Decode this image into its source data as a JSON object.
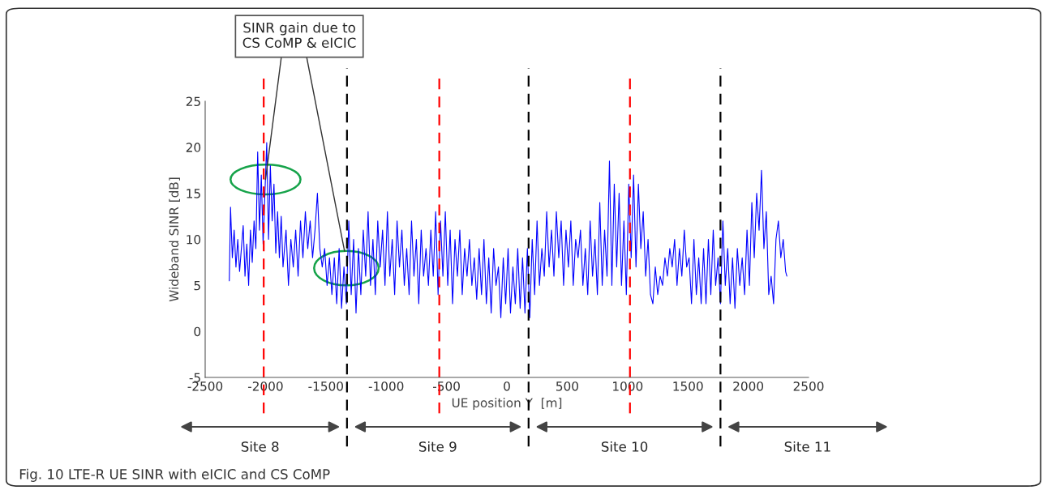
{
  "chart_data": {
    "type": "line",
    "xlabel": "UE position Y  [m]",
    "ylabel": "Wideband SINR [dB]",
    "xlim": [
      -2500,
      2500
    ],
    "xticks": [
      -2500,
      -2000,
      -1500,
      -1000,
      -500,
      0,
      500,
      1000,
      1500,
      2000,
      2500
    ],
    "ylim": [
      -5,
      25
    ],
    "yticks": [
      -5,
      0,
      5,
      10,
      15,
      20,
      25
    ],
    "grid": false,
    "legend": false,
    "series": [
      {
        "color": "#0000ff",
        "x": [
          -2300,
          -2290,
          -2275,
          -2260,
          -2245,
          -2230,
          -2215,
          -2200,
          -2185,
          -2170,
          -2155,
          -2140,
          -2125,
          -2110,
          -2095,
          -2080,
          -2065,
          -2050,
          -2035,
          -2020,
          -2005,
          -1990,
          -1975,
          -1960,
          -1945,
          -1930,
          -1915,
          -1900,
          -1885,
          -1870,
          -1855,
          -1830,
          -1810,
          -1790,
          -1770,
          -1750,
          -1730,
          -1710,
          -1690,
          -1670,
          -1650,
          -1630,
          -1610,
          -1590,
          -1570,
          -1550,
          -1530,
          -1510,
          -1490,
          -1470,
          -1450,
          -1430,
          -1410,
          -1390,
          -1370,
          -1350,
          -1330,
          -1310,
          -1290,
          -1270,
          -1250,
          -1230,
          -1210,
          -1190,
          -1170,
          -1150,
          -1130,
          -1110,
          -1090,
          -1070,
          -1050,
          -1030,
          -1010,
          -990,
          -970,
          -950,
          -930,
          -910,
          -890,
          -870,
          -850,
          -830,
          -810,
          -790,
          -770,
          -750,
          -730,
          -710,
          -690,
          -670,
          -650,
          -630,
          -610,
          -590,
          -570,
          -550,
          -530,
          -510,
          -490,
          -470,
          -450,
          -430,
          -410,
          -390,
          -370,
          -350,
          -330,
          -310,
          -290,
          -270,
          -250,
          -230,
          -210,
          -190,
          -170,
          -150,
          -130,
          -110,
          -90,
          -70,
          -50,
          -30,
          -10,
          10,
          30,
          50,
          70,
          90,
          110,
          130,
          150,
          170,
          190,
          210,
          230,
          250,
          270,
          290,
          310,
          330,
          350,
          370,
          390,
          410,
          430,
          450,
          470,
          490,
          510,
          530,
          550,
          570,
          590,
          610,
          630,
          650,
          670,
          690,
          710,
          730,
          750,
          770,
          790,
          810,
          830,
          850,
          870,
          890,
          910,
          930,
          950,
          970,
          990,
          1010,
          1030,
          1050,
          1070,
          1090,
          1110,
          1130,
          1150,
          1170,
          1190,
          1210,
          1230,
          1250,
          1270,
          1290,
          1310,
          1330,
          1350,
          1370,
          1390,
          1410,
          1430,
          1450,
          1470,
          1490,
          1510,
          1530,
          1550,
          1570,
          1590,
          1610,
          1630,
          1650,
          1670,
          1690,
          1710,
          1730,
          1750,
          1770,
          1790,
          1810,
          1830,
          1850,
          1870,
          1890,
          1910,
          1930,
          1950,
          1970,
          1990,
          2010,
          2030,
          2050,
          2070,
          2090,
          2110,
          2130,
          2150,
          2170,
          2190,
          2210,
          2230,
          2250,
          2270,
          2290,
          2310,
          2320
        ],
        "values": [
          5.5,
          13.5,
          8,
          11,
          7,
          10,
          6.5,
          9,
          11.5,
          6,
          9.5,
          5,
          11,
          7.5,
          12,
          9,
          19.5,
          11,
          17,
          9.5,
          15,
          20.5,
          10,
          18,
          12,
          16,
          8.5,
          13,
          8,
          12.5,
          7,
          11,
          5,
          10,
          7,
          11,
          6,
          12,
          8,
          13,
          9,
          12,
          8,
          11,
          15,
          9,
          7,
          9,
          5,
          8,
          4,
          8,
          3,
          9,
          2.5,
          7,
          3,
          12,
          4,
          10,
          2,
          9,
          4,
          11,
          6,
          13,
          5,
          10,
          4,
          12,
          7,
          11,
          5,
          13,
          6,
          10,
          4,
          12,
          7,
          11,
          5,
          9,
          4,
          12,
          6,
          10,
          3,
          11,
          6,
          9,
          5,
          11,
          6,
          13,
          4,
          12,
          6,
          13,
          5,
          11,
          3,
          10,
          6,
          11,
          4,
          9,
          6,
          10,
          5,
          8,
          3.5,
          9,
          4,
          10,
          3,
          8,
          2,
          9,
          5,
          7,
          1.5,
          8,
          3,
          9,
          2,
          7,
          3,
          9,
          2.5,
          8,
          2,
          9,
          1.5,
          10,
          4,
          12,
          5,
          9,
          6,
          13,
          7,
          11,
          6,
          13,
          8,
          12,
          5,
          11,
          7,
          12,
          5,
          10,
          8,
          11,
          5,
          9,
          4,
          12,
          6,
          10,
          4,
          14,
          5,
          11,
          6,
          18.5,
          5,
          16,
          7,
          15,
          5,
          12,
          4,
          16,
          8,
          17,
          7,
          16,
          9,
          13,
          6,
          10,
          4,
          3,
          7,
          4,
          6,
          5,
          8,
          6,
          9,
          7,
          10,
          5,
          9,
          6,
          11,
          7,
          8,
          3,
          10,
          4,
          8,
          3,
          9,
          3,
          10,
          4,
          11,
          5,
          8,
          3,
          12,
          5,
          9,
          3,
          8,
          2.5,
          9,
          5,
          8,
          4,
          11,
          5,
          14,
          8,
          15,
          11,
          17.5,
          9,
          13,
          4,
          6,
          3,
          10,
          12,
          8,
          10,
          6.5,
          6
        ]
      }
    ],
    "ref_lines": [
      {
        "axis": "x",
        "value": -2015,
        "color": "#ff0000",
        "line_style": "dashed"
      },
      {
        "axis": "x",
        "value": -1325,
        "color": "#000000",
        "line_style": "dashed"
      },
      {
        "axis": "x",
        "value": -560,
        "color": "#ff0000",
        "line_style": "dashed"
      },
      {
        "axis": "x",
        "value": 180,
        "color": "#000000",
        "line_style": "dashed"
      },
      {
        "axis": "x",
        "value": 1020,
        "color": "#ff0000",
        "line_style": "dashed"
      },
      {
        "axis": "x",
        "value": 1770,
        "color": "#000000",
        "line_style": "dashed"
      }
    ],
    "annotations": [
      {
        "text": "SINR gain due to\nCS CoMP & eICIC",
        "x": -2000,
        "y": 16.5
      },
      "Site 8",
      "Site 9",
      "Site 10",
      "Site 11",
      "Fig. 10 LTE-R UE SINR with eICIC and CS CoMP"
    ]
  }
}
